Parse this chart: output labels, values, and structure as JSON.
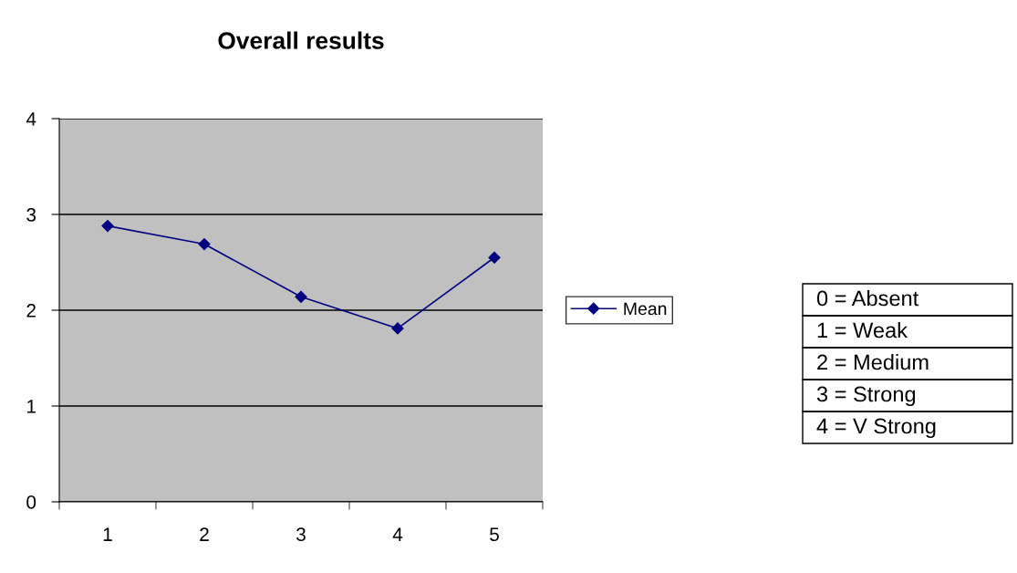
{
  "chart_data": {
    "type": "line",
    "title": "Overall results",
    "categories": [
      "1",
      "2",
      "3",
      "4",
      "5"
    ],
    "series": [
      {
        "name": "Mean",
        "color": "#000080",
        "values": [
          2.88,
          2.69,
          2.14,
          1.81,
          2.55
        ]
      }
    ],
    "ylim": [
      0,
      4
    ],
    "yticks": [
      0,
      1,
      2,
      3,
      4
    ],
    "grid": "y",
    "legend": "right",
    "marker": "diamond",
    "line_style": "solid",
    "annotations": [
      "0 = Absent",
      "1 = Weak",
      "2 = Medium",
      "3 = Strong",
      "4 = V Strong"
    ]
  }
}
